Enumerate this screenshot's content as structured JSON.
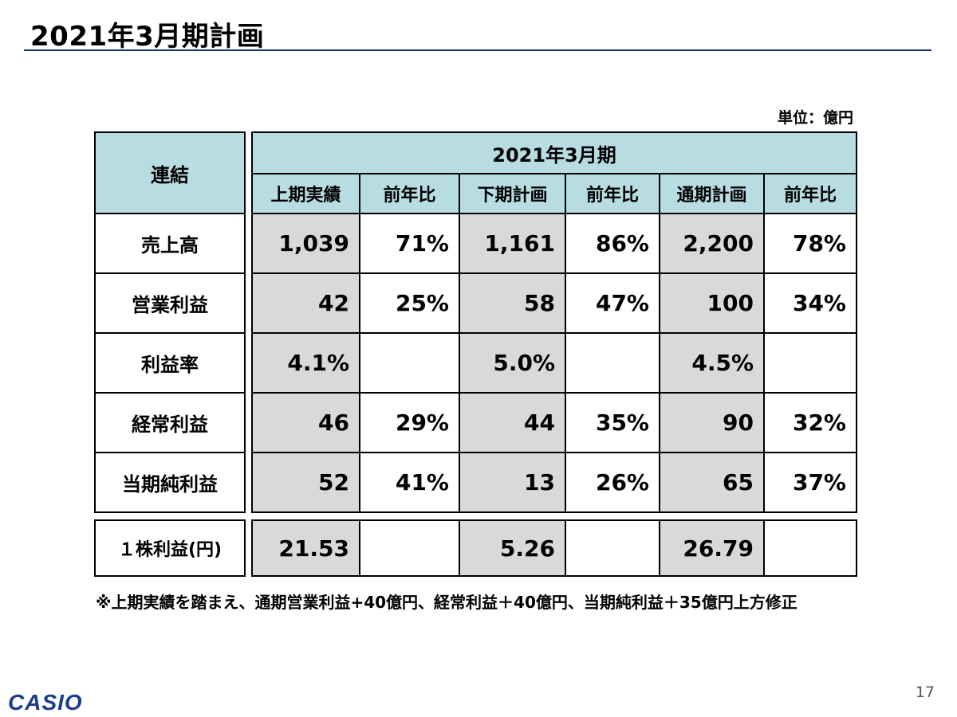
{
  "title": "2021年3月期計画",
  "unit": "単位：億円",
  "table": {
    "corner_label": "連結",
    "period_header": "2021年3月期",
    "columns": [
      "上期実績",
      "前年比",
      "下期計画",
      "前年比",
      "通期計画",
      "前年比"
    ],
    "rows": [
      {
        "label": "売上高",
        "cells": [
          "1,039",
          "71%",
          "1,161",
          "86%",
          "2,200",
          "78%"
        ]
      },
      {
        "label": "営業利益",
        "cells": [
          "42",
          "25%",
          "58",
          "47%",
          "100",
          "34%"
        ]
      },
      {
        "label": "利益率",
        "cells": [
          "4.1%",
          "",
          "5.0%",
          "",
          "4.5%",
          ""
        ]
      },
      {
        "label": "経常利益",
        "cells": [
          "46",
          "29%",
          "44",
          "35%",
          "90",
          "32%"
        ]
      },
      {
        "label": "当期純利益",
        "cells": [
          "52",
          "41%",
          "13",
          "26%",
          "65",
          "37%"
        ]
      }
    ],
    "eps_row": {
      "label": "１株利益(円)",
      "cells": [
        "21.53",
        "",
        "5.26",
        "",
        "26.79",
        ""
      ]
    }
  },
  "footnote": "※上期実績を踏まえ、通期営業利益+40億円、経常利益＋40億円、当期純利益＋35億円上方修正",
  "logo": "CASIO",
  "page_number": "17",
  "colors": {
    "header_fill": "#b7dde3",
    "shaded_cell": "#d9d9d9",
    "title_rule": "#1f3d7a",
    "logo": "#1a3a8c"
  }
}
